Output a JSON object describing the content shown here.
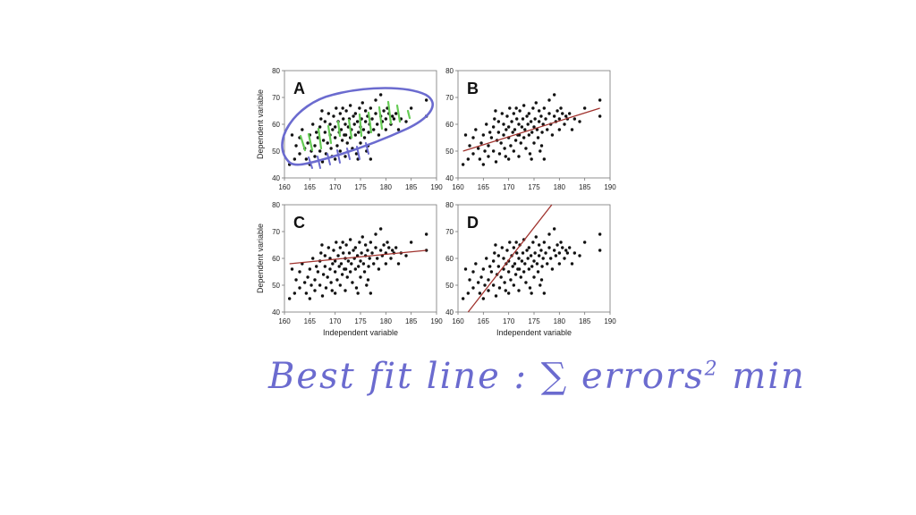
{
  "colors": {
    "points": "#111111",
    "fit_line": "#a0322d",
    "pen_blue": "#6b6bcf",
    "pen_green": "#66cc55",
    "axis": "#777777"
  },
  "annotation": {
    "text": "Best fit line :  ∑ errors",
    "superscript": "2",
    "suffix": " min"
  },
  "chart_data": [
    {
      "panel": "A",
      "type": "scatter",
      "xlim": [
        160,
        190
      ],
      "ylim": [
        40,
        80
      ],
      "xticks": [
        160,
        165,
        170,
        175,
        180,
        185,
        190
      ],
      "yticks": [
        40,
        50,
        60,
        70,
        80
      ],
      "xlabel": "",
      "ylabel": "Dependent variable",
      "fit_line": null,
      "annotations": [
        "blue loop around points",
        "green vertical error strokes"
      ]
    },
    {
      "panel": "B",
      "type": "scatter",
      "xlim": [
        160,
        190
      ],
      "ylim": [
        40,
        80
      ],
      "xticks": [
        160,
        165,
        170,
        175,
        180,
        185,
        190
      ],
      "yticks": [
        40,
        50,
        60,
        70,
        80
      ],
      "xlabel": "",
      "ylabel": "",
      "fit_line": [
        [
          161,
          50
        ],
        [
          188,
          66
        ]
      ]
    },
    {
      "panel": "C",
      "type": "scatter",
      "xlim": [
        160,
        190
      ],
      "ylim": [
        40,
        80
      ],
      "xticks": [
        160,
        165,
        170,
        175,
        180,
        185,
        190
      ],
      "yticks": [
        40,
        50,
        60,
        70,
        80
      ],
      "xlabel": "Independent variable",
      "ylabel": "Dependent variable",
      "fit_line": [
        [
          161,
          58
        ],
        [
          188,
          63
        ]
      ]
    },
    {
      "panel": "D",
      "type": "scatter",
      "xlim": [
        160,
        190
      ],
      "ylim": [
        40,
        80
      ],
      "xticks": [
        160,
        165,
        170,
        175,
        180,
        185,
        190
      ],
      "yticks": [
        40,
        50,
        60,
        70,
        80
      ],
      "xlabel": "Independent variable",
      "ylabel": "",
      "fit_line": [
        [
          162,
          40
        ],
        [
          178.5,
          80
        ]
      ]
    }
  ],
  "scatter_points": [
    [
      161,
      45
    ],
    [
      161.5,
      56
    ],
    [
      162,
      47
    ],
    [
      162.3,
      52
    ],
    [
      163,
      49
    ],
    [
      163,
      55
    ],
    [
      163.5,
      58
    ],
    [
      164,
      51
    ],
    [
      164.3,
      47
    ],
    [
      164.6,
      53
    ],
    [
      165,
      45
    ],
    [
      165,
      56
    ],
    [
      165.3,
      50
    ],
    [
      165.6,
      60
    ],
    [
      166,
      52
    ],
    [
      166,
      48
    ],
    [
      166.3,
      57
    ],
    [
      166.6,
      55
    ],
    [
      167,
      50
    ],
    [
      167,
      59
    ],
    [
      167.2,
      62
    ],
    [
      167.5,
      46
    ],
    [
      167.7,
      54
    ],
    [
      168,
      57
    ],
    [
      168,
      61
    ],
    [
      168.2,
      49
    ],
    [
      168.5,
      53
    ],
    [
      168.7,
      64
    ],
    [
      169,
      56
    ],
    [
      169,
      60
    ],
    [
      169.2,
      51
    ],
    [
      169.5,
      58
    ],
    [
      169.7,
      63
    ],
    [
      170,
      47
    ],
    [
      170,
      55
    ],
    [
      170,
      59
    ],
    [
      170.2,
      66
    ],
    [
      170.4,
      52
    ],
    [
      170.6,
      61
    ],
    [
      170.8,
      57
    ],
    [
      171,
      50
    ],
    [
      171,
      64
    ],
    [
      171.2,
      58
    ],
    [
      171.4,
      54
    ],
    [
      171.6,
      62
    ],
    [
      171.8,
      56
    ],
    [
      172,
      48
    ],
    [
      172,
      60
    ],
    [
      172.2,
      65
    ],
    [
      172.4,
      53
    ],
    [
      172.6,
      59
    ],
    [
      172.8,
      62
    ],
    [
      173,
      55
    ],
    [
      173,
      67
    ],
    [
      173.2,
      58
    ],
    [
      173.4,
      51
    ],
    [
      173.6,
      63
    ],
    [
      173.8,
      60
    ],
    [
      174,
      56
    ],
    [
      174,
      64
    ],
    [
      174.2,
      49
    ],
    [
      174.4,
      61
    ],
    [
      174.6,
      57
    ],
    [
      174.8,
      66
    ],
    [
      175,
      59
    ],
    [
      175,
      53
    ],
    [
      175.2,
      62
    ],
    [
      175.4,
      68
    ],
    [
      175.6,
      58
    ],
    [
      175.8,
      55
    ],
    [
      176,
      61
    ],
    [
      176,
      65
    ],
    [
      176.2,
      50
    ],
    [
      176.4,
      63
    ],
    [
      176.6,
      57
    ],
    [
      176.8,
      60
    ],
    [
      177,
      66
    ],
    [
      177,
      47
    ],
    [
      177.3,
      62
    ],
    [
      177.6,
      58
    ],
    [
      178,
      64
    ],
    [
      178,
      69
    ],
    [
      178.3,
      60
    ],
    [
      178.6,
      56
    ],
    [
      179,
      63
    ],
    [
      179,
      71
    ],
    [
      179.3,
      61
    ],
    [
      179.6,
      65
    ],
    [
      180,
      62
    ],
    [
      180,
      58
    ],
    [
      180.3,
      66
    ],
    [
      180.6,
      64
    ],
    [
      181,
      60
    ],
    [
      181.3,
      63
    ],
    [
      181.6,
      62
    ],
    [
      182,
      64
    ],
    [
      183,
      62
    ],
    [
      184,
      61
    ],
    [
      188,
      69
    ],
    [
      188,
      63
    ],
    [
      185,
      66
    ],
    [
      182.5,
      58
    ],
    [
      167.4,
      65
    ],
    [
      171.5,
      66
    ],
    [
      174.5,
      47
    ],
    [
      176.5,
      52
    ],
    [
      169.4,
      48
    ],
    [
      172.1,
      56
    ]
  ]
}
